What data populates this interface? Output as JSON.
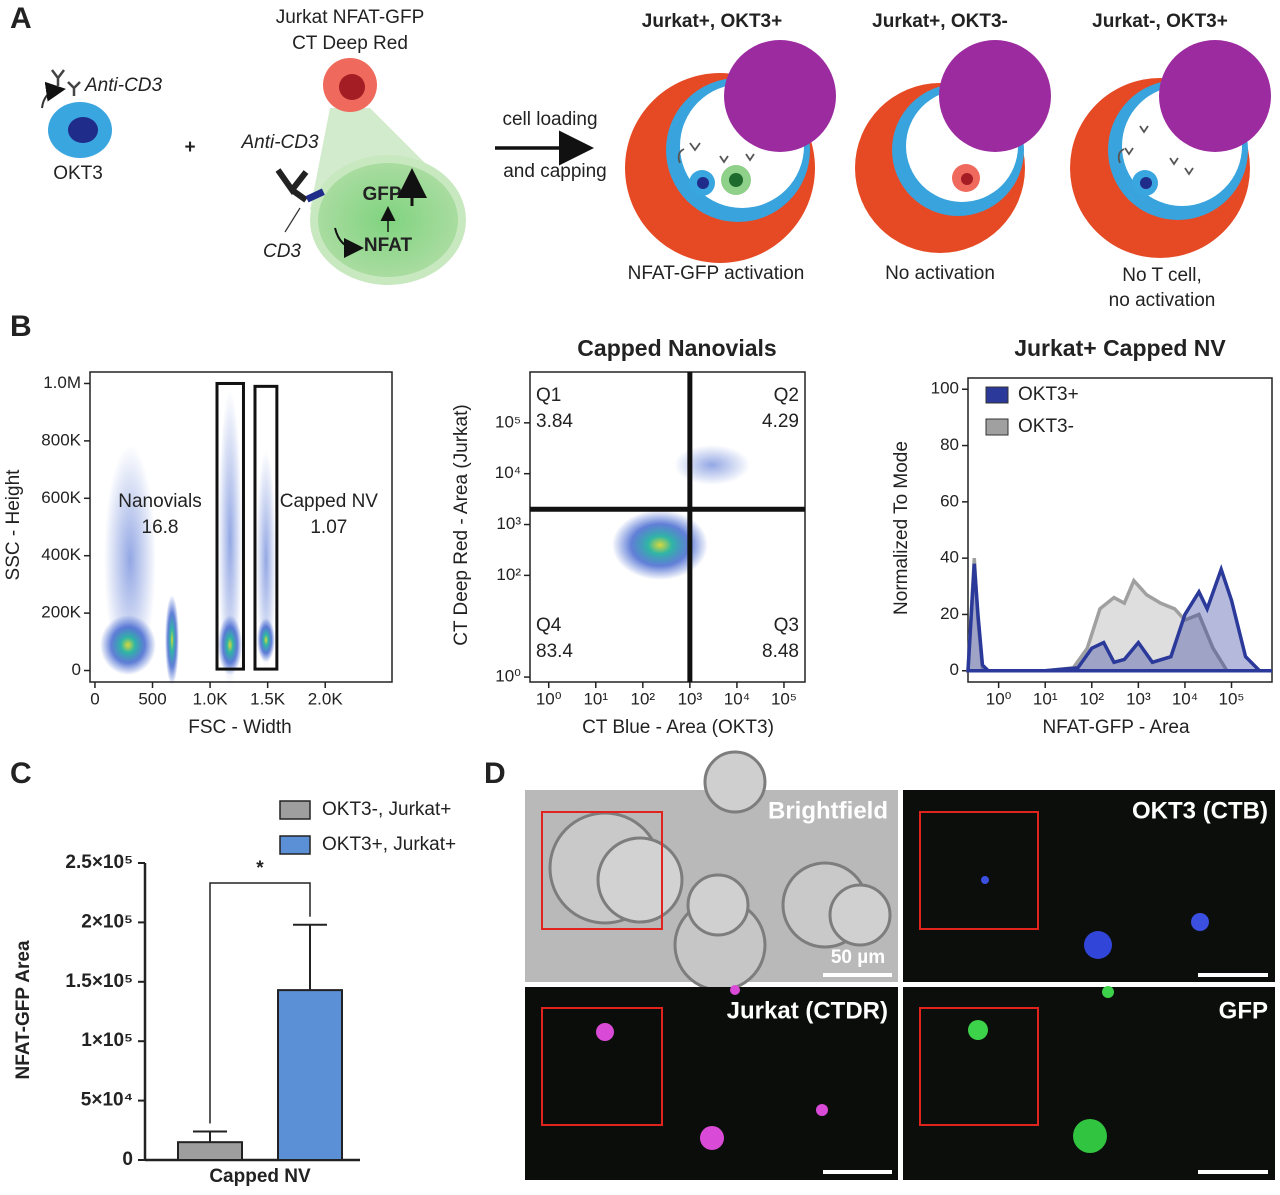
{
  "panel_labels": [
    "A",
    "B",
    "C",
    "D"
  ],
  "panel_a": {
    "okt3": {
      "antibody": "Anti-CD3",
      "label": "OKT3"
    },
    "plus": "+",
    "jurkat": {
      "title": [
        "Jurkat NFAT-GFP",
        "CT Deep Red"
      ],
      "antibody": "Anti-CD3",
      "receptor": "CD3",
      "gfp": "GFP",
      "nfat": "NFAT"
    },
    "arrow_label": [
      "cell loading",
      "and capping"
    ],
    "conditions": [
      {
        "title": "Jurkat+, OKT3+",
        "caption": [
          "NFAT-GFP activation"
        ]
      },
      {
        "title": "Jurkat+, OKT3-",
        "caption": [
          "No activation"
        ]
      },
      {
        "title": "Jurkat-, OKT3+",
        "caption": [
          "No T cell,",
          "no activation"
        ]
      }
    ]
  },
  "panel_d": {
    "images": [
      "Brightfield",
      "OKT3 (CTB)",
      "Jurkat (CTDR)",
      "GFP"
    ],
    "scale_bar": "50 µm"
  },
  "chart_data": [
    {
      "type": "gating",
      "xlabel": "FSC - Width",
      "ylabel": "SSC - Height",
      "xlim": [
        -43,
        2580
      ],
      "ylim": [
        -40000,
        1040000
      ],
      "xticks": [
        0,
        500,
        {
          "value": 1000,
          "label": "1.0K"
        },
        {
          "value": 1500,
          "label": "1.5K"
        },
        {
          "value": 2000,
          "label": "2.0K"
        }
      ],
      "yticks": [
        0,
        {
          "value": 200000,
          "label": "200K"
        },
        {
          "value": 400000,
          "label": "400K"
        },
        {
          "value": 600000,
          "label": "600K"
        },
        {
          "value": 800000,
          "label": "800K"
        },
        {
          "value": 1000000,
          "label": "1.0M"
        }
      ],
      "gates": [
        {
          "name": "Nanovials",
          "value": 16.8,
          "xrange": [
            1060,
            1290
          ],
          "yrange": [
            5000,
            1000000
          ]
        },
        {
          "name": "Capped NV",
          "value": 1.07,
          "xrange": [
            1390,
            1580
          ],
          "yrange": [
            5000,
            990000
          ]
        }
      ]
    },
    {
      "type": "quadrant",
      "title": "Capped Nanovials",
      "xlabel": "CT Blue - Area (OKT3)",
      "ylabel": "CT Deep Red - Area (Jurkat)",
      "xscale": "log",
      "yscale": "log",
      "xlim": [
        0.4,
        280000
      ],
      "ylim": [
        0.8,
        1000000
      ],
      "xticks": [
        {
          "value": 1,
          "label": "10⁰"
        },
        {
          "value": 10,
          "label": "10¹"
        },
        {
          "value": 100,
          "label": "10²"
        },
        {
          "value": 1000,
          "label": "10³"
        },
        {
          "value": 10000,
          "label": "10⁴"
        },
        {
          "value": 100000,
          "label": "10⁵"
        }
      ],
      "yticks": [
        {
          "value": 1,
          "label": "10⁰"
        },
        {
          "value": 100,
          "label": "10²"
        },
        {
          "value": 1000,
          "label": "10³"
        },
        {
          "value": 10000,
          "label": "10⁴"
        },
        {
          "value": 100000,
          "label": "10⁵"
        }
      ],
      "gate_x": 1000,
      "gate_y": 2000,
      "quadrants": [
        {
          "name": "Q1",
          "value": 3.84,
          "corner": "top-left"
        },
        {
          "name": "Q2",
          "value": 4.29,
          "corner": "top-right"
        },
        {
          "name": "Q3",
          "value": 8.48,
          "corner": "bottom-right"
        },
        {
          "name": "Q4",
          "value": 83.4,
          "corner": "bottom-left"
        }
      ]
    },
    {
      "type": "area",
      "title": "Jurkat+ Capped NV",
      "xlabel": "NFAT-GFP - Area",
      "ylabel": "Normalized To Mode",
      "xscale": "log",
      "xlim": [
        0.22,
        740000
      ],
      "ylim": [
        -4,
        104
      ],
      "xticks": [
        {
          "value": 1,
          "label": "10⁰"
        },
        {
          "value": 10,
          "label": "10¹"
        },
        {
          "value": 100,
          "label": "10²"
        },
        {
          "value": 1000,
          "label": "10³"
        },
        {
          "value": 10000,
          "label": "10⁴"
        },
        {
          "value": 100000,
          "label": "10⁵"
        }
      ],
      "yticks": [
        0,
        20,
        40,
        60,
        80,
        100
      ],
      "legend": "top-left",
      "series": [
        {
          "name": "OKT3+",
          "color": "#2b3a9a",
          "x": [
            0.22,
            0.3,
            0.36,
            0.45,
            0.6,
            1,
            10,
            50,
            100,
            180,
            300,
            500,
            1000,
            2000,
            5000,
            10000,
            20000,
            30000,
            60000,
            100000,
            200000,
            400000,
            740000
          ],
          "values": [
            0,
            38,
            20,
            2,
            0,
            0,
            0,
            1,
            8,
            10,
            3,
            4,
            10,
            3,
            5,
            20,
            28,
            22,
            36,
            25,
            5,
            0,
            0
          ]
        },
        {
          "name": "OKT3-",
          "color": "#a0a0a0",
          "x": [
            0.22,
            0.3,
            0.36,
            0.45,
            0.6,
            1,
            10,
            40,
            80,
            150,
            300,
            500,
            800,
            1500,
            3000,
            6000,
            10000,
            20000,
            40000,
            80000,
            740000
          ],
          "values": [
            0,
            40,
            18,
            1,
            0,
            0,
            0,
            1,
            8,
            22,
            26,
            24,
            32,
            27,
            24,
            22,
            18,
            20,
            8,
            0,
            0
          ]
        }
      ]
    },
    {
      "type": "bar",
      "ylabel": "NFAT-GFP Area",
      "categories": [
        "Capped NV"
      ],
      "ylim": [
        0,
        250000
      ],
      "yticks": [
        0,
        {
          "value": 50000,
          "label": "5×10⁴"
        },
        {
          "value": 100000,
          "label": "1×10⁵"
        },
        {
          "value": 150000,
          "label": "1.5×10⁵"
        },
        {
          "value": 200000,
          "label": "2×10⁵"
        },
        {
          "value": 250000,
          "label": "2.5×10⁵"
        }
      ],
      "significance": "*",
      "series": [
        {
          "name": "OKT3-, Jurkat+",
          "color": "#9e9e9e",
          "values": [
            15000
          ],
          "errors": [
            9000
          ]
        },
        {
          "name": "OKT3+, Jurkat+",
          "color": "#5b8fd6",
          "values": [
            143000
          ],
          "errors": [
            55000
          ]
        }
      ]
    }
  ]
}
